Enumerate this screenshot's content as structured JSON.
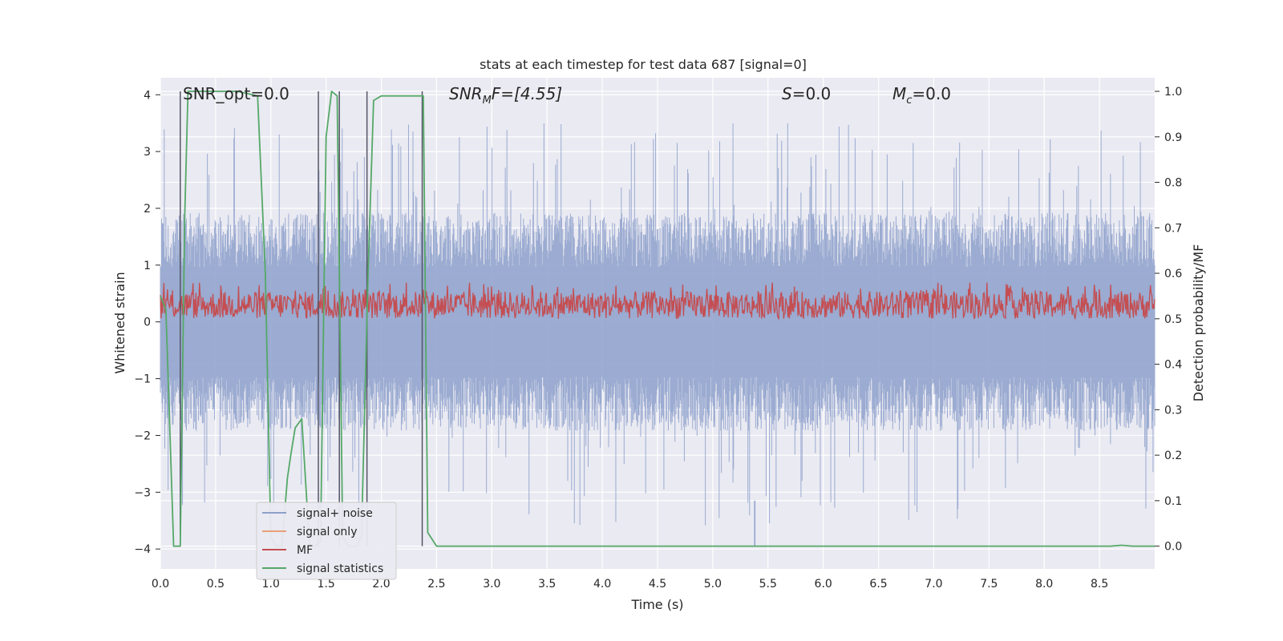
{
  "chart_data": {
    "type": "line",
    "title": "stats at each timestep for test data 687 [signal=0]",
    "xlabel": "Time (s)",
    "ylabel_left": "Whitened strain",
    "ylabel_right": "Detection probability/MF",
    "xlim": [
      0.0,
      9.0
    ],
    "ylim_left": [
      -4.35,
      4.3
    ],
    "ylim_right": [
      -0.05,
      1.03
    ],
    "xticks": [
      "0.0",
      "0.5",
      "1.0",
      "1.5",
      "2.0",
      "2.5",
      "3.0",
      "3.5",
      "4.0",
      "4.5",
      "5.0",
      "5.5",
      "6.0",
      "6.5",
      "7.0",
      "7.5",
      "8.0",
      "8.5"
    ],
    "yticks_left": [
      "4",
      "3",
      "2",
      "1",
      "0",
      "−1",
      "−2",
      "−3",
      "−4"
    ],
    "yticks_right": [
      "1.0",
      "0.9",
      "0.8",
      "0.7",
      "0.6",
      "0.5",
      "0.4",
      "0.3",
      "0.2",
      "0.1",
      "0.0"
    ],
    "grid": true,
    "legend_position": "lower-left",
    "annotations": {
      "snr_opt": "SNR_opt=0.0",
      "snr_mf_base": "SNR",
      "snr_mf_sub": "M",
      "snr_mf_rest": "F=[4.55]",
      "s_stat": "=0.0",
      "s_sym": "S",
      "mc_sym": "M",
      "mc_sub": "c",
      "mc_rest": "=0.0"
    },
    "series": [
      {
        "name": "signal+ noise",
        "color": "#8da0cb",
        "axis": "left",
        "envelope_upper_typical": 1.6,
        "envelope_upper_peak": 3.5,
        "envelope_lower_typical": -1.6,
        "envelope_lower_peak": -3.6
      },
      {
        "name": "signal only",
        "color": "#e8a07a",
        "axis": "left",
        "values": [
          0,
          0
        ]
      },
      {
        "name": "MF",
        "color": "#c44e52",
        "axis": "right",
        "range_typical": [
          0.5,
          0.56
        ],
        "peak": 0.58
      },
      {
        "name": "signal statistics",
        "color": "#55a868",
        "axis": "right",
        "x": [
          0.0,
          0.05,
          0.12,
          0.18,
          0.22,
          0.25,
          0.3,
          0.5,
          0.7,
          0.88,
          0.95,
          1.0,
          1.05,
          1.1,
          1.15,
          1.18,
          1.22,
          1.28,
          1.35,
          1.4,
          1.45,
          1.5,
          1.55,
          1.6,
          1.65,
          1.7,
          1.78,
          1.82,
          1.88,
          1.93,
          2.0,
          2.2,
          2.38,
          2.42,
          2.5,
          3.0,
          4.0,
          5.0,
          6.0,
          7.0,
          8.0,
          8.6,
          8.7,
          8.8,
          9.0
        ],
        "y": [
          0.55,
          0.52,
          0.0,
          0.0,
          0.72,
          1.0,
          1.0,
          1.0,
          1.0,
          0.99,
          0.6,
          0.02,
          0.0,
          0.0,
          0.15,
          0.2,
          0.26,
          0.28,
          0.0,
          0.0,
          0.01,
          0.9,
          1.0,
          0.99,
          0.02,
          0.0,
          0.0,
          0.02,
          0.6,
          0.98,
          0.99,
          0.99,
          0.99,
          0.03,
          0.0,
          0.0,
          0.0,
          0.0,
          0.0,
          0.0,
          0.0,
          0.0,
          0.002,
          0.0,
          0.0
        ]
      },
      {
        "name": "",
        "color": "#555566",
        "axis": "right",
        "type": "vlines",
        "x": [
          0.18,
          1.43,
          1.62,
          1.87,
          2.37
        ],
        "x_short": [
          5.38
        ]
      }
    ]
  }
}
